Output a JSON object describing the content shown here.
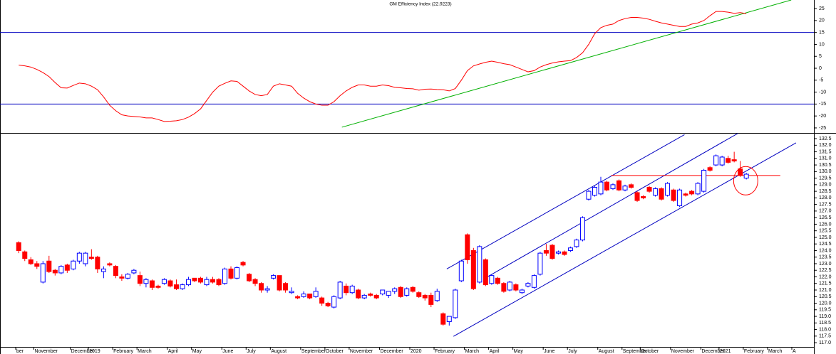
{
  "chart_data": [
    {
      "type": "line",
      "title": "GM Efficiency Index (22.9223)",
      "color": "#ff0000",
      "ylim": [
        -27.1,
        28.6
      ],
      "yticks": [
        25,
        20,
        15,
        10,
        5,
        0,
        -5,
        -10,
        -15,
        -20,
        -25
      ],
      "hlines": [
        15,
        -15
      ],
      "hline_color": "#0000c0",
      "trendline": {
        "color": "#00b000",
        "x": [
          53.3,
          127.4
        ],
        "y": [
          -24.7,
          28.6
        ]
      },
      "values": [
        1.3,
        1.0,
        0.5,
        -0.5,
        -1.8,
        -3.5,
        -6,
        -8.2,
        -8.3,
        -7.2,
        -6.2,
        -6.5,
        -7.5,
        -9,
        -12,
        -15.5,
        -17.8,
        -19.5,
        -20,
        -20.2,
        -20.4,
        -20.8,
        -20.8,
        -21.5,
        -22.3,
        -22.2,
        -22,
        -21.5,
        -20.5,
        -19,
        -17,
        -13.5,
        -10,
        -7.5,
        -6.3,
        -5.3,
        -5.5,
        -7.5,
        -9.5,
        -11,
        -11.5,
        -11,
        -7.5,
        -6.5,
        -7,
        -7.5,
        -10.5,
        -12.5,
        -14,
        -15,
        -15.5,
        -15.5,
        -14,
        -11.5,
        -9.5,
        -8,
        -7,
        -7,
        -7.5,
        -7.5,
        -7,
        -7.3,
        -8,
        -8.2,
        -8.5,
        -8.6,
        -9.2,
        -8.8,
        -8.7,
        -8.9,
        -9,
        -9.5,
        -8.5,
        -5,
        -1,
        1,
        1.8,
        2.5,
        3,
        2.5,
        1.9,
        1.5,
        0.5,
        -0.5,
        -1.5,
        -1,
        0.5,
        1.5,
        2.2,
        2.7,
        3,
        3.2,
        4.5,
        6.5,
        10,
        14.5,
        17,
        18,
        18.5,
        20,
        20.8,
        21.3,
        21.3,
        21,
        20.5,
        19.7,
        19,
        18.5,
        18,
        17.5,
        17.5,
        18.5,
        19,
        20,
        22,
        23.8,
        23.8,
        23.5,
        23,
        23.3,
        22.9
      ]
    },
    {
      "type": "candlestick",
      "up_color": "#0000ff",
      "down_color": "#ff0000",
      "ylim": [
        116.68,
        132.88
      ],
      "yticks": [
        132.5,
        {
          "value": 132,
          "label": "132.0"
        },
        131.5,
        {
          "value": 131,
          "label": "131.0"
        },
        130.5,
        {
          "value": 130,
          "label": "130.0"
        },
        129.5,
        {
          "value": 129,
          "label": "129.0"
        },
        128.5,
        {
          "value": 128,
          "label": "128.0"
        },
        127.5,
        {
          "value": 127,
          "label": "127.0"
        },
        126.5,
        {
          "value": 126,
          "label": "126.0"
        },
        125.5,
        {
          "value": 125,
          "label": "125.0"
        },
        124.5,
        {
          "value": 124,
          "label": "124.0"
        },
        123.5,
        {
          "value": 123,
          "label": "123.0"
        },
        122.5,
        {
          "value": 122,
          "label": "122.0"
        },
        121.5,
        {
          "value": 121,
          "label": "121.0"
        },
        120.5,
        {
          "value": 120,
          "label": "120.0"
        },
        119.5,
        {
          "value": 119,
          "label": "119.0"
        },
        118.5,
        {
          "value": 118,
          "label": "118.0"
        },
        117.5,
        {
          "value": 117,
          "label": "117.0"
        }
      ],
      "categories": [
        "ber",
        null,
        null,
        "November",
        null,
        null,
        null,
        null,
        null,
        "December",
        null,
        null,
        "2019",
        null,
        null,
        null,
        "February",
        null,
        null,
        null,
        "March",
        null,
        null,
        null,
        null,
        "April",
        null,
        null,
        null,
        "May",
        null,
        null,
        null,
        null,
        "June",
        null,
        null,
        null,
        "July",
        null,
        null,
        null,
        "August",
        null,
        null,
        null,
        null,
        "September",
        null,
        null,
        null,
        "October",
        null,
        null,
        null,
        "November",
        null,
        null,
        null,
        null,
        "December",
        null,
        null,
        null,
        null,
        "2020",
        null,
        null,
        null,
        "February",
        null,
        null,
        null,
        null,
        "March",
        null,
        null,
        null,
        "April",
        null,
        null,
        null,
        "May",
        null,
        null,
        null,
        null,
        "June",
        null,
        null,
        null,
        "July",
        null,
        null,
        null,
        null,
        "August",
        null,
        null,
        null,
        "September",
        null,
        null,
        "October",
        null,
        null,
        null,
        null,
        "November",
        null,
        null,
        null,
        null,
        "December",
        null,
        null,
        "2021",
        null,
        null,
        null,
        "February",
        null,
        null,
        null,
        "March",
        null,
        null,
        null,
        "A",
        null
      ],
      "open": [
        124.6,
        123.9,
        123.3,
        123.0,
        121.6,
        123.2,
        122.5,
        122.3,
        122.9,
        122.6,
        123.2,
        123.0,
        123.5,
        123.5,
        122.4,
        123.0,
        122.8,
        122.0,
        121.9,
        122.3,
        122.1,
        121.5,
        121.7,
        121.3,
        121.5,
        121.7,
        121.4,
        121.1,
        121.4,
        121.9,
        121.9,
        121.4,
        121.8,
        121.8,
        121.5,
        122.6,
        121.9,
        123.1,
        122.2,
        121.8,
        121.5,
        121.0,
        121.9,
        122.1,
        121.5,
        120.8,
        120.5,
        120.5,
        120.7,
        120.5,
        120.4,
        120.0,
        119.7,
        120.4,
        121.3,
        120.8,
        121.0,
        120.4,
        120.7,
        120.6,
        120.7,
        120.6,
        120.9,
        121.2,
        120.6,
        121.2,
        120.8,
        120.6,
        120.6,
        120.2,
        119.2,
        118.6,
        118.9,
        121.7,
        125.2,
        124.0,
        121.6,
        123.3,
        121.5,
        121.9,
        121.5,
        121.0,
        121.4,
        120.8,
        121.3,
        121.2,
        122.2,
        124.0,
        124.4,
        123.8,
        123.9,
        124.0,
        124.3,
        124.8,
        127.9,
        128.2,
        128.3,
        129.2,
        128.7,
        129.3,
        128.6,
        129.0,
        128.4,
        128.1,
        128.8,
        128.2,
        128.7,
        128.2,
        128.6,
        127.4,
        128.3,
        128.5,
        128.3,
        128.5,
        130.3,
        130.5,
        130.5,
        131.0,
        130.9,
        130.2,
        129.5,
        null,
        null,
        null,
        null,
        null,
        null,
        null,
        null,
        null
      ],
      "high": [
        124.7,
        124.0,
        123.5,
        123.2,
        123.2,
        123.6,
        122.6,
        122.9,
        123.0,
        123.3,
        123.9,
        123.9,
        124.1,
        123.6,
        122.8,
        123.1,
        122.9,
        122.2,
        122.3,
        122.6,
        122.4,
        121.9,
        121.8,
        121.4,
        121.9,
        121.8,
        121.8,
        121.5,
        122.0,
        121.9,
        122.0,
        122.0,
        122.0,
        121.9,
        122.7,
        122.8,
        122.8,
        123.2,
        122.3,
        121.9,
        121.6,
        121.3,
        122.2,
        122.1,
        121.6,
        121.2,
        120.6,
        120.9,
        120.7,
        121.2,
        120.5,
        120.1,
        120.6,
        121.7,
        121.5,
        121.4,
        121.1,
        120.7,
        120.8,
        120.7,
        121.0,
        120.9,
        121.2,
        121.3,
        121.2,
        121.3,
        120.9,
        120.7,
        120.8,
        121.1,
        119.3,
        119.0,
        121.1,
        123.3,
        125.3,
        124.2,
        124.4,
        123.4,
        122.2,
        122.0,
        121.6,
        121.7,
        121.5,
        121.1,
        121.6,
        122.2,
        123.9,
        124.5,
        124.5,
        124.0,
        124.0,
        124.3,
        124.9,
        126.6,
        128.6,
        128.9,
        129.6,
        129.3,
        129.1,
        129.4,
        129.0,
        129.1,
        128.5,
        128.2,
        128.9,
        128.8,
        128.8,
        129.2,
        128.7,
        128.7,
        128.4,
        128.6,
        129.2,
        130.2,
        130.4,
        131.3,
        131.2,
        131.2,
        131.5,
        130.8,
        129.9,
        null,
        null,
        null,
        null,
        null,
        null,
        null,
        null,
        null
      ],
      "low": [
        123.8,
        123.2,
        122.9,
        122.6,
        121.5,
        122.3,
        122.1,
        122.2,
        122.3,
        122.5,
        123.0,
        122.8,
        123.3,
        122.3,
        121.9,
        122.8,
        121.9,
        121.7,
        121.8,
        122.2,
        121.3,
        121.2,
        121.0,
        121.1,
        121.4,
        121.2,
        121.0,
        121.0,
        121.3,
        121.6,
        121.5,
        121.3,
        121.5,
        121.3,
        121.4,
        121.8,
        121.8,
        122.8,
        121.6,
        121.3,
        120.8,
        120.8,
        121.8,
        120.9,
        120.8,
        120.7,
        120.3,
        120.4,
        120.3,
        120.4,
        119.8,
        119.7,
        119.6,
        120.3,
        120.6,
        120.7,
        120.3,
        120.3,
        120.5,
        120.3,
        120.6,
        120.4,
        120.7,
        120.4,
        120.5,
        120.8,
        120.4,
        120.2,
        119.7,
        120.1,
        118.3,
        118.3,
        118.8,
        121.6,
        123.0,
        121.0,
        121.5,
        121.3,
        121.4,
        121.4,
        120.8,
        120.9,
        120.9,
        120.7,
        121.2,
        121.1,
        122.1,
        123.6,
        123.3,
        123.7,
        123.6,
        123.9,
        124.2,
        124.7,
        127.8,
        128.1,
        128.2,
        128.5,
        128.6,
        128.5,
        128.5,
        128.7,
        127.7,
        127.9,
        128.4,
        128.1,
        127.8,
        128.1,
        127.7,
        127.3,
        128.1,
        128.2,
        128.2,
        128.4,
        130.0,
        130.4,
        130.4,
        130.6,
        130.7,
        129.6,
        129.4,
        null,
        null,
        null,
        null,
        null,
        null,
        null,
        null,
        null
      ],
      "close": [
        124.0,
        123.4,
        123.0,
        122.8,
        123.0,
        122.4,
        122.3,
        122.8,
        122.5,
        123.2,
        123.8,
        123.8,
        123.4,
        122.6,
        122.6,
        122.9,
        122.1,
        121.9,
        122.2,
        122.5,
        121.5,
        121.8,
        121.2,
        121.2,
        121.8,
        121.3,
        121.1,
        121.4,
        121.8,
        121.7,
        121.6,
        121.8,
        121.6,
        121.4,
        122.6,
        121.9,
        122.7,
        122.9,
        121.7,
        121.5,
        121.0,
        121.1,
        122.1,
        121.0,
        121.0,
        120.9,
        120.4,
        120.7,
        120.4,
        120.9,
        120.0,
        119.8,
        120.5,
        121.6,
        120.8,
        121.3,
        120.4,
        120.6,
        120.6,
        120.4,
        121.0,
        120.9,
        121.1,
        120.5,
        121.1,
        120.9,
        120.5,
        120.4,
        119.9,
        120.9,
        118.4,
        119.0,
        121.0,
        123.2,
        123.3,
        121.1,
        124.3,
        121.4,
        122.1,
        121.5,
        120.9,
        121.6,
        121.0,
        121.0,
        121.5,
        122.1,
        123.8,
        123.8,
        123.4,
        123.9,
        123.7,
        124.2,
        124.8,
        126.5,
        128.5,
        128.8,
        129.2,
        128.6,
        129.0,
        128.6,
        128.9,
        128.8,
        127.8,
        128.0,
        128.5,
        128.7,
        127.9,
        129.1,
        127.8,
        128.6,
        128.2,
        128.3,
        129.1,
        130.1,
        130.1,
        131.2,
        131.1,
        130.7,
        130.8,
        129.7,
        129.8,
        null,
        null,
        null,
        null,
        null,
        null,
        null,
        null,
        null
      ],
      "channel_color": "#0000c0",
      "channels": [
        {
          "x": [
            70.6,
            109.8
          ],
          "y": [
            122.6,
            132.8
          ]
        },
        {
          "x": [
            77.1,
            118.6
          ],
          "y": [
            121.95,
            132.9
          ]
        },
        {
          "x": [
            71.7,
            128.2
          ],
          "y": [
            117.48,
            132.18
          ]
        }
      ],
      "hline": {
        "value": 129.7,
        "x": [
          97.7,
          125.6
        ],
        "color": "#ff0000"
      },
      "circle": {
        "x": 119.9,
        "y": 129.3,
        "color": "#ff0000"
      }
    }
  ]
}
